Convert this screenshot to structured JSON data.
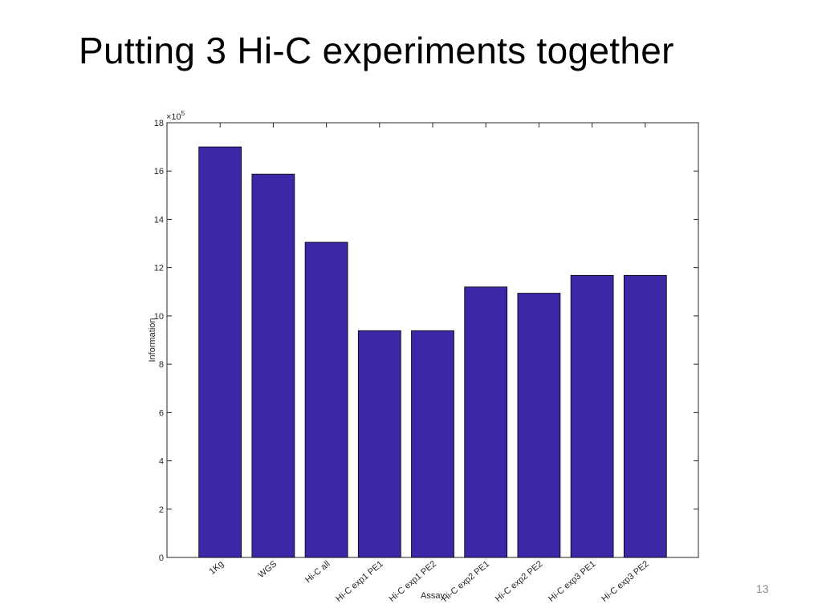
{
  "slide": {
    "title": "Putting 3 Hi-C experiments together",
    "number": "13"
  },
  "chart_data": {
    "type": "bar",
    "categories": [
      "1Kg",
      "WGS",
      "Hi-C all",
      "Hi-C exp1 PE1",
      "Hi-C exp1 PE2",
      "Hi-C exp2 PE1",
      "Hi-C exp2 PE2",
      "Hi-C exp3 PE1",
      "Hi-C exp3 PE2"
    ],
    "values": [
      1700000,
      1587000,
      1305000,
      939000,
      939000,
      1120000,
      1094000,
      1168000,
      1168000
    ],
    "xlabel": "Assay",
    "ylabel": "Information",
    "ylim": [
      0,
      1800000
    ],
    "y_tick_values": [
      0,
      2,
      4,
      6,
      8,
      10,
      12,
      14,
      16,
      18
    ],
    "y_multiplier_base": "×10",
    "y_multiplier_exponent": "5",
    "y_scale": 100000,
    "bar_color": "#3b28a6",
    "grid": false
  }
}
